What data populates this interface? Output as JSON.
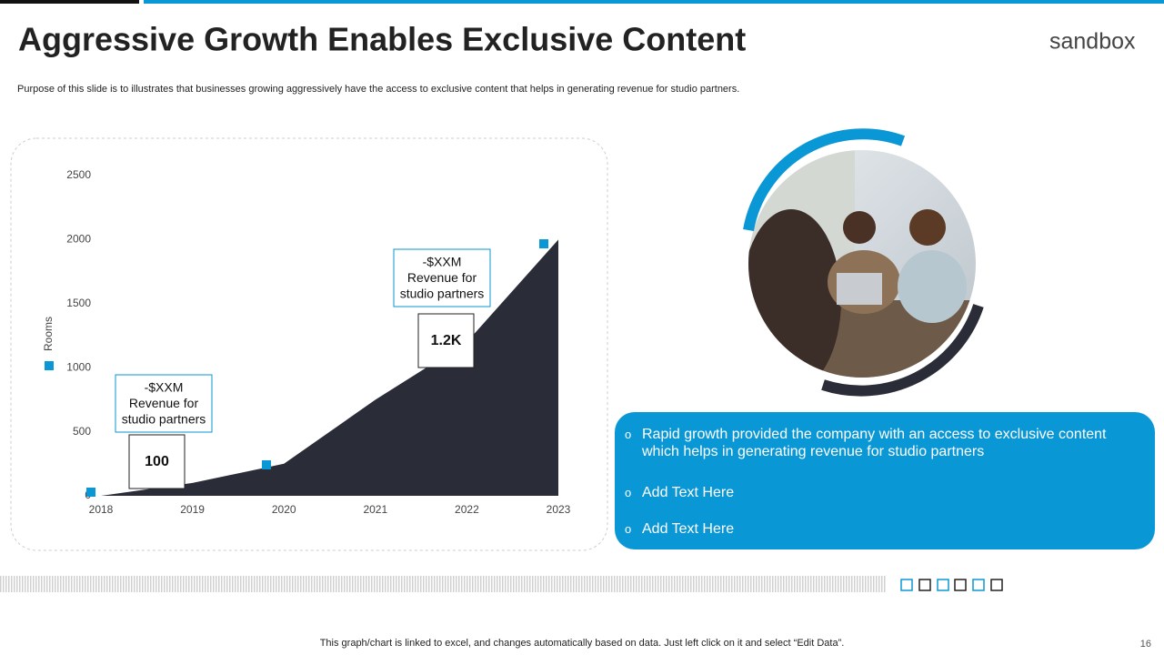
{
  "title": "Aggressive Growth Enables Exclusive Content",
  "logo": "sandbox",
  "subtitle": "Purpose of this slide is to illustrates that businesses growing aggressively have the access to exclusive content that helps in generating revenue for studio partners.",
  "chart_data": {
    "type": "area",
    "y_label": "Rooms",
    "categories": [
      "2018",
      "2019",
      "2020",
      "2021",
      "2022",
      "2023"
    ],
    "values": [
      0,
      100,
      250,
      750,
      1200,
      2000
    ],
    "value_labels": [
      null,
      "100",
      null,
      null,
      "1.2K",
      null
    ],
    "color": "#2a2d38",
    "ylim": [
      0,
      2500
    ],
    "yticks": [
      0,
      500,
      1000,
      1500,
      2000,
      2500
    ],
    "annotations": [
      [
        "-$XXM",
        "Revenue for",
        "studio partners"
      ],
      [
        "-$XXM",
        "Revenue for",
        "studio partners"
      ]
    ]
  },
  "bullets": [
    "Rapid growth provided the company with an access to exclusive content which helps in generating revenue for studio partners",
    "Add Text Here",
    "Add Text Here"
  ],
  "footer": "This graph/chart is linked to excel,  and changes automatically based on data. Just left click on it and select “Edit Data”.",
  "page_number": "16"
}
